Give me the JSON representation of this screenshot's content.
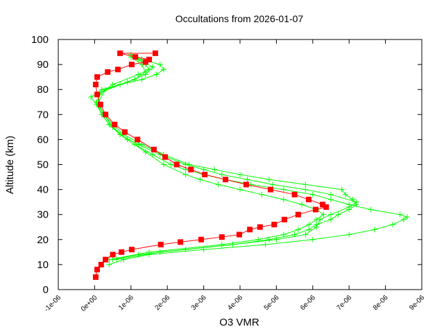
{
  "chart_data": {
    "type": "line",
    "title": "Occultations from 2026-01-07",
    "xlabel": "O3 VMR",
    "ylabel": "Altitude (km)",
    "xlim": [
      -1e-06,
      9e-06
    ],
    "ylim": [
      0,
      100
    ],
    "x_unit_scale": 1e-06,
    "x_ticks": [
      -1,
      0,
      1,
      2,
      3,
      4,
      5,
      6,
      7,
      8,
      9
    ],
    "x_tick_labels": [
      "-1e-06",
      "0e+00",
      "1e-06",
      "2e-06",
      "3e-06",
      "4e-06",
      "5e-06",
      "6e-06",
      "7e-06",
      "8e-06",
      "9e-06"
    ],
    "y_ticks": [
      0,
      10,
      20,
      30,
      40,
      50,
      60,
      70,
      80,
      90,
      100
    ],
    "y_tick_labels": [
      "0",
      "10",
      "20",
      "30",
      "40",
      "50",
      "60",
      "70",
      "80",
      "90",
      "100"
    ],
    "grid": false,
    "legend": "none",
    "series": [
      {
        "color": "#00ff00",
        "marker": "plus",
        "points": [
          [
            0.4,
            10
          ],
          [
            0.8,
            12
          ],
          [
            1.5,
            14
          ],
          [
            3,
            16
          ],
          [
            4.7,
            18
          ],
          [
            6,
            20
          ],
          [
            7,
            22
          ],
          [
            7.7,
            24
          ],
          [
            8.2,
            26
          ],
          [
            8.5,
            28
          ],
          [
            8.6,
            29
          ],
          [
            8.4,
            30
          ],
          [
            7.6,
            32
          ],
          [
            7.0,
            34
          ],
          [
            6.5,
            36
          ],
          [
            6.0,
            38
          ],
          [
            5.2,
            40
          ],
          [
            4.3,
            42
          ],
          [
            3.6,
            44
          ],
          [
            3.0,
            46
          ],
          [
            2.5,
            48
          ],
          [
            2.1,
            50
          ],
          [
            1.6,
            54
          ],
          [
            1.1,
            58
          ],
          [
            0.7,
            62
          ],
          [
            0.4,
            66
          ],
          [
            0.2,
            70
          ],
          [
            0.05,
            74
          ],
          [
            -0.1,
            77
          ],
          [
            0.2,
            80
          ],
          [
            0.7,
            82
          ],
          [
            1.3,
            84
          ],
          [
            1.7,
            86
          ],
          [
            1.9,
            88
          ],
          [
            1.8,
            90
          ],
          [
            1.3,
            92
          ],
          [
            1.0,
            94
          ]
        ]
      },
      {
        "color": "#00ff00",
        "marker": "plus",
        "points": [
          [
            0.5,
            12
          ],
          [
            1.2,
            14
          ],
          [
            2.5,
            16
          ],
          [
            3.8,
            18
          ],
          [
            4.8,
            20
          ],
          [
            5.5,
            22
          ],
          [
            5.9,
            24
          ],
          [
            6.1,
            26
          ],
          [
            6.5,
            28
          ],
          [
            6.7,
            30
          ],
          [
            7.0,
            32
          ],
          [
            7.2,
            34
          ],
          [
            7.1,
            36
          ],
          [
            6.9,
            38
          ],
          [
            6.8,
            40
          ],
          [
            5.8,
            42
          ],
          [
            4.8,
            44
          ],
          [
            4.0,
            46
          ],
          [
            3.3,
            48
          ],
          [
            2.6,
            50
          ],
          [
            1.9,
            54
          ],
          [
            1.3,
            58
          ],
          [
            0.8,
            62
          ],
          [
            0.5,
            66
          ],
          [
            0.25,
            70
          ],
          [
            0.1,
            74
          ],
          [
            0.1,
            78
          ],
          [
            0.5,
            82
          ],
          [
            1.2,
            86
          ],
          [
            1.5,
            88
          ],
          [
            1.4,
            90
          ],
          [
            1.1,
            93
          ]
        ]
      },
      {
        "color": "#00ff00",
        "marker": "plus",
        "points": [
          [
            0.6,
            12
          ],
          [
            1.8,
            15
          ],
          [
            3.8,
            18
          ],
          [
            5.0,
            20
          ],
          [
            5.8,
            22
          ],
          [
            6.1,
            25
          ],
          [
            6.2,
            28
          ],
          [
            6.5,
            30
          ],
          [
            7.0,
            33
          ],
          [
            7.2,
            35
          ],
          [
            6.5,
            38
          ],
          [
            5.8,
            40
          ],
          [
            4.9,
            42
          ],
          [
            4.2,
            44
          ],
          [
            3.5,
            46
          ],
          [
            3.0,
            48
          ],
          [
            2.5,
            50
          ],
          [
            1.8,
            54
          ],
          [
            1.2,
            58
          ],
          [
            0.7,
            62
          ],
          [
            0.4,
            66
          ],
          [
            0.2,
            70
          ],
          [
            0.05,
            75
          ],
          [
            0.2,
            79
          ],
          [
            0.9,
            83
          ],
          [
            1.4,
            86
          ],
          [
            1.6,
            89
          ],
          [
            1.2,
            92
          ]
        ]
      },
      {
        "color": "#00ff00",
        "marker": "plus",
        "points": [
          [
            0.4,
            12
          ],
          [
            1.5,
            15
          ],
          [
            3.5,
            18
          ],
          [
            4.5,
            20
          ],
          [
            5.2,
            22
          ],
          [
            5.6,
            24
          ],
          [
            5.9,
            26
          ],
          [
            6.1,
            28
          ],
          [
            6.3,
            30
          ],
          [
            6.1,
            32
          ],
          [
            5.7,
            34
          ],
          [
            5.2,
            36
          ],
          [
            4.6,
            38
          ],
          [
            4.0,
            40
          ],
          [
            3.4,
            42
          ],
          [
            2.9,
            44
          ],
          [
            2.5,
            46
          ],
          [
            1.9,
            50
          ],
          [
            1.4,
            55
          ],
          [
            0.9,
            60
          ],
          [
            0.5,
            65
          ],
          [
            0.25,
            70
          ],
          [
            0.1,
            75
          ],
          [
            0.3,
            80
          ],
          [
            1.1,
            84
          ],
          [
            1.4,
            87
          ],
          [
            1.3,
            90
          ],
          [
            1.0,
            93
          ]
        ]
      },
      {
        "color": "#ff0000",
        "marker": "square",
        "points": [
          [
            0.03,
            5
          ],
          [
            0.07,
            8
          ],
          [
            0.18,
            10
          ],
          [
            0.3,
            12
          ],
          [
            0.5,
            14
          ],
          [
            0.74,
            15
          ],
          [
            1.02,
            16
          ],
          [
            1.82,
            18
          ],
          [
            2.36,
            19
          ],
          [
            2.93,
            20
          ],
          [
            3.5,
            21
          ],
          [
            3.98,
            22
          ],
          [
            4.27,
            24
          ],
          [
            4.55,
            25
          ],
          [
            4.94,
            26
          ],
          [
            5.22,
            28
          ],
          [
            5.6,
            30
          ],
          [
            6.08,
            32
          ],
          [
            6.37,
            33
          ],
          [
            6.27,
            34
          ],
          [
            5.89,
            36
          ],
          [
            5.5,
            38
          ],
          [
            4.84,
            40
          ],
          [
            4.17,
            42
          ],
          [
            3.6,
            44
          ],
          [
            3.03,
            46
          ],
          [
            2.65,
            48
          ],
          [
            2.26,
            50
          ],
          [
            1.94,
            53
          ],
          [
            1.63,
            56
          ],
          [
            1.18,
            60
          ],
          [
            0.83,
            63
          ],
          [
            0.55,
            66
          ],
          [
            0.3,
            70
          ],
          [
            0.16,
            74
          ],
          [
            0.07,
            78
          ],
          [
            0.03,
            82
          ],
          [
            0.07,
            85
          ],
          [
            0.36,
            87
          ],
          [
            0.64,
            88
          ],
          [
            1.02,
            90
          ],
          [
            1.4,
            91
          ],
          [
            1.5,
            92
          ],
          [
            1.12,
            93
          ],
          [
            0.7,
            94.5
          ],
          [
            1.67,
            94.5
          ]
        ]
      }
    ]
  }
}
